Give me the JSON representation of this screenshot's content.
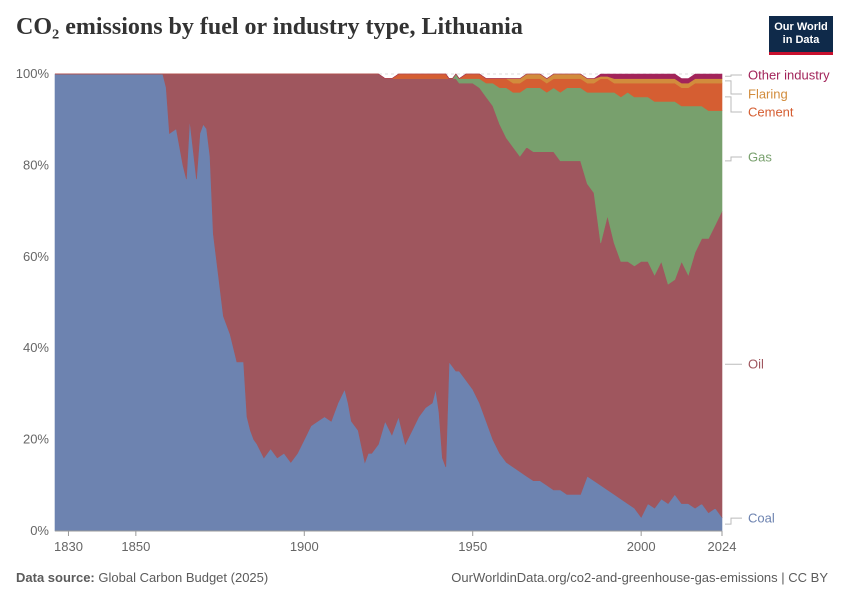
{
  "header": {
    "title": "CO₂ emissions by fuel or industry type, Lithuania",
    "logo_text": "Our World in Data"
  },
  "footer": {
    "source_label": "Data source:",
    "source_text": "Global Carbon Budget (2025)",
    "url_text": "OurWorldinData.org/co2-and-greenhouse-gas-emissions | CC BY"
  },
  "chart_data": {
    "type": "area",
    "stacked": true,
    "normalized": true,
    "title": "CO₂ emissions by fuel or industry type, Lithuania",
    "xlim": [
      1826,
      2024
    ],
    "ylim": [
      0,
      100
    ],
    "x_ticks": [
      "1830",
      "1850",
      "1900",
      "1950",
      "2000",
      "2024"
    ],
    "y_ticks": [
      "0%",
      "20%",
      "40%",
      "60%",
      "80%",
      "100%"
    ],
    "grid": true,
    "x": [
      1826,
      1858,
      1859,
      1860,
      1862,
      1864,
      1865,
      1866,
      1868,
      1869,
      1870,
      1871,
      1872,
      1873,
      1874,
      1876,
      1878,
      1880,
      1882,
      1883,
      1884,
      1885,
      1886,
      1888,
      1890,
      1892,
      1894,
      1896,
      1898,
      1900,
      1902,
      1904,
      1906,
      1908,
      1910,
      1912,
      1913,
      1914,
      1916,
      1918,
      1919,
      1920,
      1922,
      1924,
      1926,
      1928,
      1930,
      1932,
      1934,
      1936,
      1938,
      1939,
      1940,
      1941,
      1942,
      1943,
      1944,
      1945,
      1946,
      1948,
      1950,
      1952,
      1954,
      1956,
      1958,
      1960,
      1962,
      1964,
      1966,
      1968,
      1970,
      1972,
      1974,
      1976,
      1978,
      1980,
      1982,
      1984,
      1986,
      1988,
      1990,
      1992,
      1994,
      1996,
      1998,
      2000,
      2002,
      2004,
      2006,
      2008,
      2010,
      2012,
      2014,
      2016,
      2018,
      2020,
      2022,
      2024
    ],
    "series": [
      {
        "name": "Coal",
        "color": "#6d83b0",
        "values": [
          100,
          100,
          97,
          87,
          88,
          80,
          77,
          90,
          77,
          87,
          89,
          88,
          82,
          65,
          59,
          47,
          43,
          37,
          37,
          25,
          22,
          20,
          19,
          16,
          18,
          16,
          17,
          15,
          17,
          20,
          23,
          24,
          25,
          24,
          28,
          31,
          28,
          24,
          22,
          15,
          17,
          17,
          19,
          24,
          21,
          25,
          19,
          22,
          25,
          27,
          28,
          31,
          26,
          16,
          14,
          37,
          36,
          35,
          35,
          33,
          31,
          28,
          24,
          20,
          17,
          15,
          14,
          13,
          12,
          11,
          11,
          10,
          9,
          9,
          8,
          8,
          8,
          12,
          11,
          10,
          9,
          8,
          7,
          6,
          5,
          3,
          6,
          5,
          7,
          6,
          8,
          6,
          6,
          5,
          6,
          4,
          5,
          3
        ]
      },
      {
        "name": "Oil",
        "color": "#9f565e",
        "values": [
          0,
          0,
          3,
          13,
          12,
          20,
          23,
          10,
          23,
          13,
          11,
          12,
          18,
          35,
          41,
          53,
          57,
          63,
          63,
          75,
          78,
          80,
          81,
          84,
          82,
          84,
          83,
          85,
          83,
          80,
          77,
          76,
          75,
          76,
          72,
          69,
          72,
          76,
          78,
          85,
          83,
          83,
          81,
          75,
          78,
          74,
          80,
          77,
          74,
          72,
          71,
          68,
          73,
          83,
          85,
          62,
          63,
          64,
          63,
          65,
          67,
          69,
          71,
          73,
          72,
          71,
          70,
          69,
          72,
          72,
          72,
          73,
          74,
          72,
          73,
          73,
          73,
          64,
          63,
          53,
          60,
          55,
          52,
          53,
          53,
          56,
          53,
          51,
          52,
          48,
          47,
          53,
          50,
          56,
          58,
          60,
          62,
          67
        ]
      },
      {
        "name": "Gas",
        "color": "#78a06d",
        "values": [
          0,
          0,
          0,
          0,
          0,
          0,
          0,
          0,
          0,
          0,
          0,
          0,
          0,
          0,
          0,
          0,
          0,
          0,
          0,
          0,
          0,
          0,
          0,
          0,
          0,
          0,
          0,
          0,
          0,
          0,
          0,
          0,
          0,
          0,
          0,
          0,
          0,
          0,
          0,
          0,
          0,
          0,
          0,
          0,
          0,
          0,
          0,
          0,
          0,
          0,
          0,
          0,
          0,
          0,
          0,
          0,
          0,
          1,
          1,
          1,
          1,
          2,
          3,
          5,
          8,
          11,
          12,
          14,
          13,
          14,
          14,
          13,
          14,
          15,
          16,
          16,
          16,
          20,
          22,
          33,
          27,
          33,
          36,
          37,
          37,
          36,
          36,
          38,
          35,
          40,
          39,
          34,
          37,
          32,
          29,
          28,
          25,
          22
        ]
      },
      {
        "name": "Cement",
        "color": "#d55e32",
        "values": [
          0,
          0,
          0,
          0,
          0,
          0,
          0,
          0,
          0,
          0,
          0,
          0,
          0,
          0,
          0,
          0,
          0,
          0,
          0,
          0,
          0,
          0,
          0,
          0,
          0,
          0,
          0,
          0,
          0,
          0,
          0,
          0,
          0,
          0,
          0,
          0,
          0,
          0,
          0,
          0,
          0,
          0,
          0,
          0,
          0,
          1,
          1,
          1,
          1,
          1,
          1,
          1,
          1,
          1,
          1,
          0,
          0,
          0,
          0,
          1,
          1,
          1,
          1,
          1,
          2,
          2,
          2,
          2,
          2,
          2,
          2,
          2,
          2,
          3,
          2,
          2,
          2,
          2,
          2,
          3,
          3,
          2,
          3,
          2,
          3,
          3,
          3,
          4,
          4,
          4,
          4,
          4,
          4,
          5,
          5,
          6,
          6,
          6
        ]
      },
      {
        "name": "Flaring",
        "color": "#d28c3c",
        "values": [
          0,
          0,
          0,
          0,
          0,
          0,
          0,
          0,
          0,
          0,
          0,
          0,
          0,
          0,
          0,
          0,
          0,
          0,
          0,
          0,
          0,
          0,
          0,
          0,
          0,
          0,
          0,
          0,
          0,
          0,
          0,
          0,
          0,
          0,
          0,
          0,
          0,
          0,
          0,
          0,
          0,
          0,
          0,
          0,
          0,
          0,
          0,
          0,
          0,
          0,
          0,
          0,
          0,
          0,
          0,
          0,
          0,
          0,
          0,
          0,
          0,
          0,
          0,
          0,
          0,
          0,
          1,
          1,
          1,
          1,
          1,
          1,
          1,
          1,
          1,
          1,
          1,
          1,
          1,
          0.5,
          0.5,
          1,
          1,
          1,
          1,
          1,
          1,
          1,
          1,
          1,
          1,
          1,
          1,
          1,
          1,
          1,
          1,
          1
        ]
      },
      {
        "name": "Other industry",
        "color": "#a2245a",
        "values": [
          0,
          0,
          0,
          0,
          0,
          0,
          0,
          0,
          0,
          0,
          0,
          0,
          0,
          0,
          0,
          0,
          0,
          0,
          0,
          0,
          0,
          0,
          0,
          0,
          0,
          0,
          0,
          0,
          0,
          0,
          0,
          0,
          0,
          0,
          0,
          0,
          0,
          0,
          0,
          0,
          0,
          0,
          0,
          0,
          0,
          0,
          0,
          0,
          0,
          0,
          0,
          0,
          0,
          0,
          0,
          0,
          0,
          0,
          0,
          0,
          0,
          0,
          0,
          0,
          0,
          0,
          0,
          0,
          0,
          0,
          0,
          0,
          0,
          0,
          0,
          0,
          0,
          0,
          0,
          0.5,
          0.5,
          1,
          1,
          1,
          1,
          1,
          1,
          1,
          1,
          1,
          1,
          1,
          1,
          1,
          1,
          1,
          1,
          1
        ]
      }
    ],
    "legend": [
      "Other industry",
      "Flaring",
      "Cement",
      "Gas",
      "Oil",
      "Coal"
    ],
    "legend_placement": "right"
  }
}
